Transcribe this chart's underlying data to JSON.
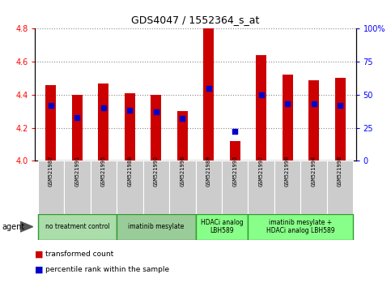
{
  "title": "GDS4047 / 1552364_s_at",
  "samples": [
    "GSM521987",
    "GSM521991",
    "GSM521995",
    "GSM521988",
    "GSM521992",
    "GSM521996",
    "GSM521989",
    "GSM521993",
    "GSM521997",
    "GSM521990",
    "GSM521994",
    "GSM521998"
  ],
  "transformed_count": [
    4.46,
    4.4,
    4.47,
    4.41,
    4.4,
    4.3,
    4.8,
    4.12,
    4.64,
    4.52,
    4.49,
    4.5
  ],
  "percentile_rank": [
    42,
    33,
    40,
    38,
    37,
    32,
    55,
    22,
    50,
    43,
    43,
    42
  ],
  "ylim_left": [
    4.0,
    4.8
  ],
  "ylim_right": [
    0,
    100
  ],
  "yticks_left": [
    4.0,
    4.2,
    4.4,
    4.6,
    4.8
  ],
  "yticks_right": [
    0,
    25,
    50,
    75,
    100
  ],
  "ytick_labels_right": [
    "0",
    "25",
    "50",
    "75",
    "100%"
  ],
  "bar_color": "#cc0000",
  "dot_color": "#0000cc",
  "bar_bottom": 4.0,
  "dot_size": 18,
  "groups": [
    {
      "label": "no treatment control",
      "start": 0,
      "end": 3,
      "color": "#aaddaa"
    },
    {
      "label": "imatinib mesylate",
      "start": 3,
      "end": 6,
      "color": "#99cc99"
    },
    {
      "label": "HDACi analog\nLBH589",
      "start": 6,
      "end": 8,
      "color": "#88ff88"
    },
    {
      "label": "imatinib mesylate +\nHDACi analog LBH589",
      "start": 8,
      "end": 12,
      "color": "#88ff88"
    }
  ],
  "grid_color": "#888888",
  "bg_color": "#ffffff",
  "sample_bg_color": "#cccccc",
  "agent_label": "agent",
  "legend_items": [
    "transformed count",
    "percentile rank within the sample"
  ],
  "bar_width": 0.4
}
